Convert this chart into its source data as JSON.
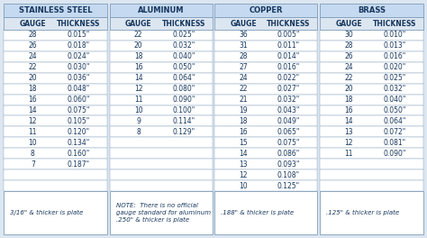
{
  "sections": [
    {
      "title": "STAINLESS STEEL",
      "gauges": [
        28,
        26,
        24,
        22,
        20,
        18,
        16,
        14,
        12,
        11,
        10,
        8,
        7
      ],
      "thicknesses": [
        "0.015\"",
        "0.018\"",
        "0.024\"",
        "0.030\"",
        "0.036\"",
        "0.048\"",
        "0.060\"",
        "0.075\"",
        "0.105\"",
        "0.120\"",
        "0.134\"",
        "0.160\"",
        "0.187\""
      ],
      "note": "3/16\" & thicker is plate"
    },
    {
      "title": "ALUMINUM",
      "gauges": [
        22,
        20,
        18,
        16,
        14,
        12,
        11,
        10,
        9,
        8
      ],
      "thicknesses": [
        "0.025\"",
        "0.032\"",
        "0.040\"",
        "0.050\"",
        "0.064\"",
        "0.080\"",
        "0.090\"",
        "0.100\"",
        "0.114\"",
        "0.129\""
      ],
      "note": "NOTE:  There is no official\ngauge standard for aluminum\n.250\" & thicker is plate"
    },
    {
      "title": "COPPER",
      "gauges": [
        36,
        31,
        28,
        27,
        24,
        22,
        21,
        19,
        18,
        16,
        15,
        14,
        13,
        12,
        10
      ],
      "thicknesses": [
        "0.005\"",
        "0.011\"",
        "0.014\"",
        "0.016\"",
        "0.022\"",
        "0.027\"",
        "0.032\"",
        "0.043\"",
        "0.049\"",
        "0.065\"",
        "0.075\"",
        "0.086\"",
        "0.093\"",
        "0.108\"",
        "0.125\""
      ],
      "note": ".188\" & thicker is plate"
    },
    {
      "title": "BRASS",
      "gauges": [
        30,
        28,
        26,
        24,
        22,
        20,
        18,
        16,
        14,
        13,
        12,
        11
      ],
      "thicknesses": [
        "0.010\"",
        "0.013\"",
        "0.016\"",
        "0.020\"",
        "0.025\"",
        "0.032\"",
        "0.040\"",
        "0.050\"",
        "0.064\"",
        "0.072\"",
        "0.081\"",
        "0.090\""
      ],
      "note": ".125\" & thicker is plate"
    }
  ],
  "header_bg": "#c5d9f1",
  "subheader_bg": "#dce6f1",
  "row_bg": "#ffffff",
  "border_color": "#7f9db9",
  "outer_bg": "#dce6f1",
  "title_color": "#17375e",
  "text_color": "#17375e",
  "note_color": "#17375e",
  "title_fontsize": 6.0,
  "subheader_fontsize": 5.5,
  "data_fontsize": 5.5,
  "note_fontsize": 5.0,
  "max_rows": 15
}
